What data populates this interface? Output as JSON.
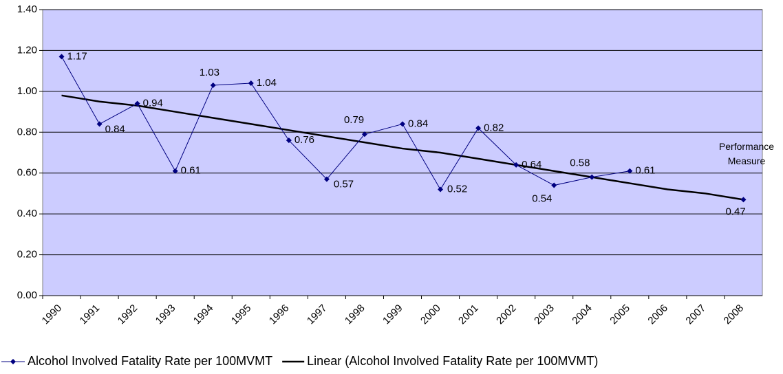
{
  "chart_data": {
    "type": "line",
    "categories": [
      "1990",
      "1991",
      "1992",
      "1993",
      "1994",
      "1995",
      "1996",
      "1997",
      "1998",
      "1999",
      "2000",
      "2001",
      "2002",
      "2003",
      "2004",
      "2005",
      "2006",
      "2007",
      "2008"
    ],
    "series": [
      {
        "name": "Alcohol Involved Fatality Rate per 100MVMT",
        "color": "#000080",
        "values": [
          1.17,
          0.84,
          0.94,
          0.61,
          1.03,
          1.04,
          0.76,
          0.57,
          0.79,
          0.84,
          0.52,
          0.82,
          0.64,
          0.54,
          0.58,
          0.61,
          null,
          null,
          0.47
        ]
      },
      {
        "name": "Linear (Alcohol Involved Fatality Rate per 100MVMT)",
        "color": "#000000",
        "values": [
          0.98,
          0.95,
          0.93,
          0.9,
          0.87,
          0.84,
          0.81,
          0.78,
          0.75,
          0.72,
          0.7,
          0.67,
          0.64,
          0.61,
          0.58,
          0.55,
          0.52,
          0.5,
          0.47
        ]
      }
    ],
    "annotation": "Performance Measure",
    "ylim": [
      0,
      1.4
    ],
    "yticks": [
      {
        "value": 0,
        "label": "0.00"
      },
      {
        "value": 0.2,
        "label": "0.20"
      },
      {
        "value": 0.4,
        "label": "0.40"
      },
      {
        "value": 0.6,
        "label": "0.60"
      },
      {
        "value": 0.8,
        "label": "0.80"
      },
      {
        "value": 1,
        "label": "1.00"
      },
      {
        "value": 1.2,
        "label": "1.20"
      },
      {
        "value": 1.4,
        "label": "1.40"
      }
    ],
    "grid": true,
    "background": "#ccccff",
    "legend": "bottom"
  }
}
